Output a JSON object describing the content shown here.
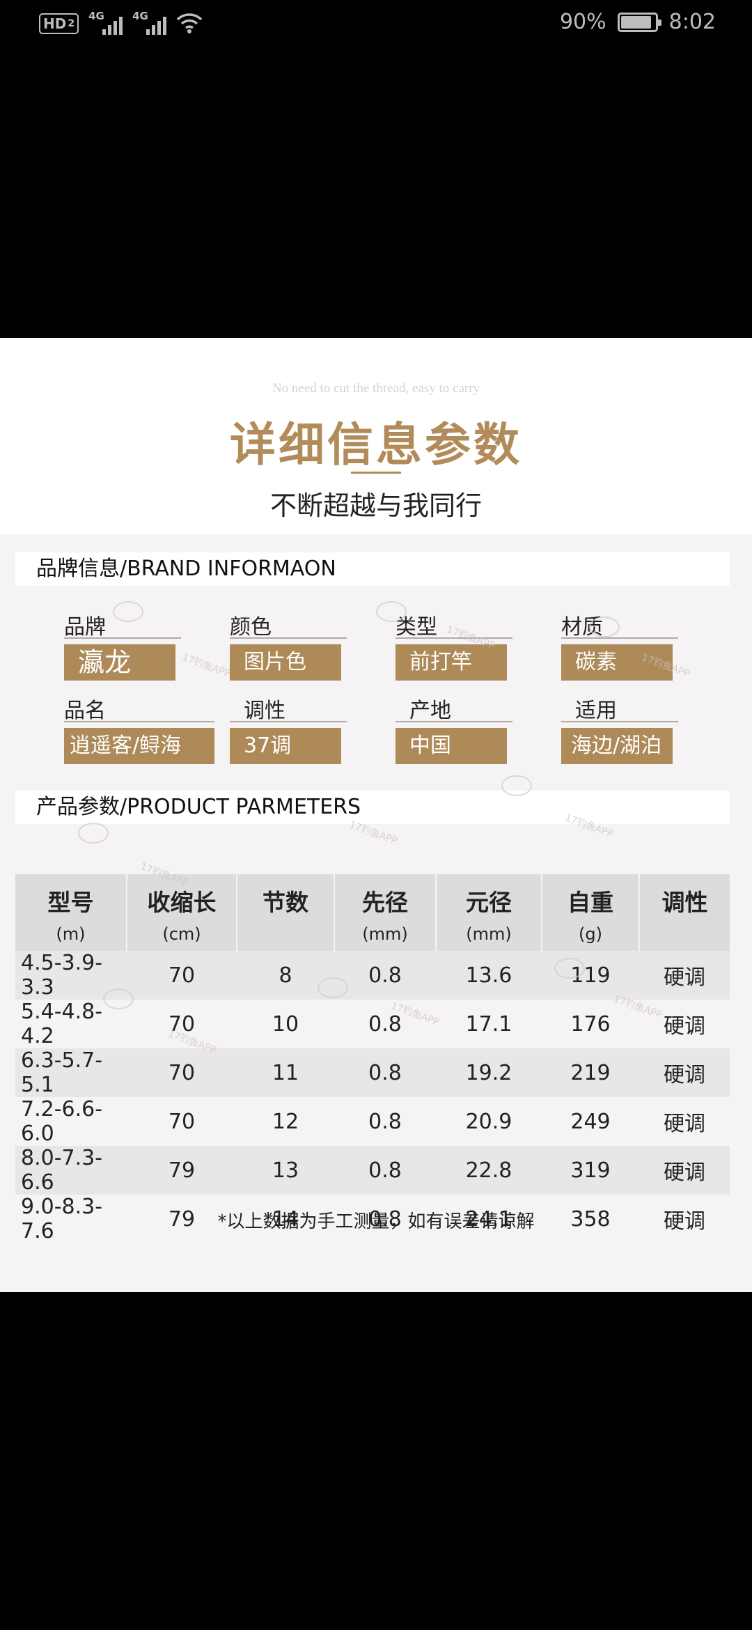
{
  "status_bar": {
    "hd": "HD",
    "hd_sim": "2",
    "sim1_net": "4G",
    "sim2_net": "4G",
    "battery_text": "90%",
    "battery_level": 0.9,
    "time": "8:02"
  },
  "header": {
    "tagline_en": "No need to cut the thread, easy to carry",
    "title": "详细信息参数",
    "subtitle": "不断超越与我同行"
  },
  "brand_section": {
    "title": "品牌信息/BRAND INFORMAON",
    "items": [
      {
        "label": "品牌",
        "value": "瀛龙"
      },
      {
        "label": "颜色",
        "value": "图片色"
      },
      {
        "label": "类型",
        "value": "前打竿"
      },
      {
        "label": "材质",
        "value": "碳素"
      },
      {
        "label": "品名",
        "value": "逍遥客/鲟海"
      },
      {
        "label": "调性",
        "value": "37调"
      },
      {
        "label": "产地",
        "value": "中国"
      },
      {
        "label": "适用",
        "value": "海边/湖泊"
      }
    ]
  },
  "params_section": {
    "title": "产品参数/PRODUCT PARMETERS",
    "columns": [
      {
        "name": "型号",
        "unit": "(m)"
      },
      {
        "name": "收缩长",
        "unit": "(cm)"
      },
      {
        "name": "节数",
        "unit": ""
      },
      {
        "name": "先径",
        "unit": "(mm)"
      },
      {
        "name": "元径",
        "unit": "(mm)"
      },
      {
        "name": "自重",
        "unit": "(g)"
      },
      {
        "name": "调性",
        "unit": ""
      }
    ],
    "rows": [
      [
        "4.5-3.9-3.3",
        "70",
        "8",
        "0.8",
        "13.6",
        "119",
        "硬调"
      ],
      [
        "5.4-4.8-4.2",
        "70",
        "10",
        "0.8",
        "17.1",
        "176",
        "硬调"
      ],
      [
        "6.3-5.7-5.1",
        "70",
        "11",
        "0.8",
        "19.2",
        "219",
        "硬调"
      ],
      [
        "7.2-6.6-6.0",
        "70",
        "12",
        "0.8",
        "20.9",
        "249",
        "硬调"
      ],
      [
        "8.0-7.3-6.6",
        "79",
        "13",
        "0.8",
        "22.8",
        "319",
        "硬调"
      ],
      [
        "9.0-8.3-7.6",
        "79",
        "14",
        "0.8",
        "24.1",
        "358",
        "硬调"
      ]
    ]
  },
  "note": "*以上数据为手工测量，如有误差请谅解",
  "watermark": "17钓鱼APP"
}
